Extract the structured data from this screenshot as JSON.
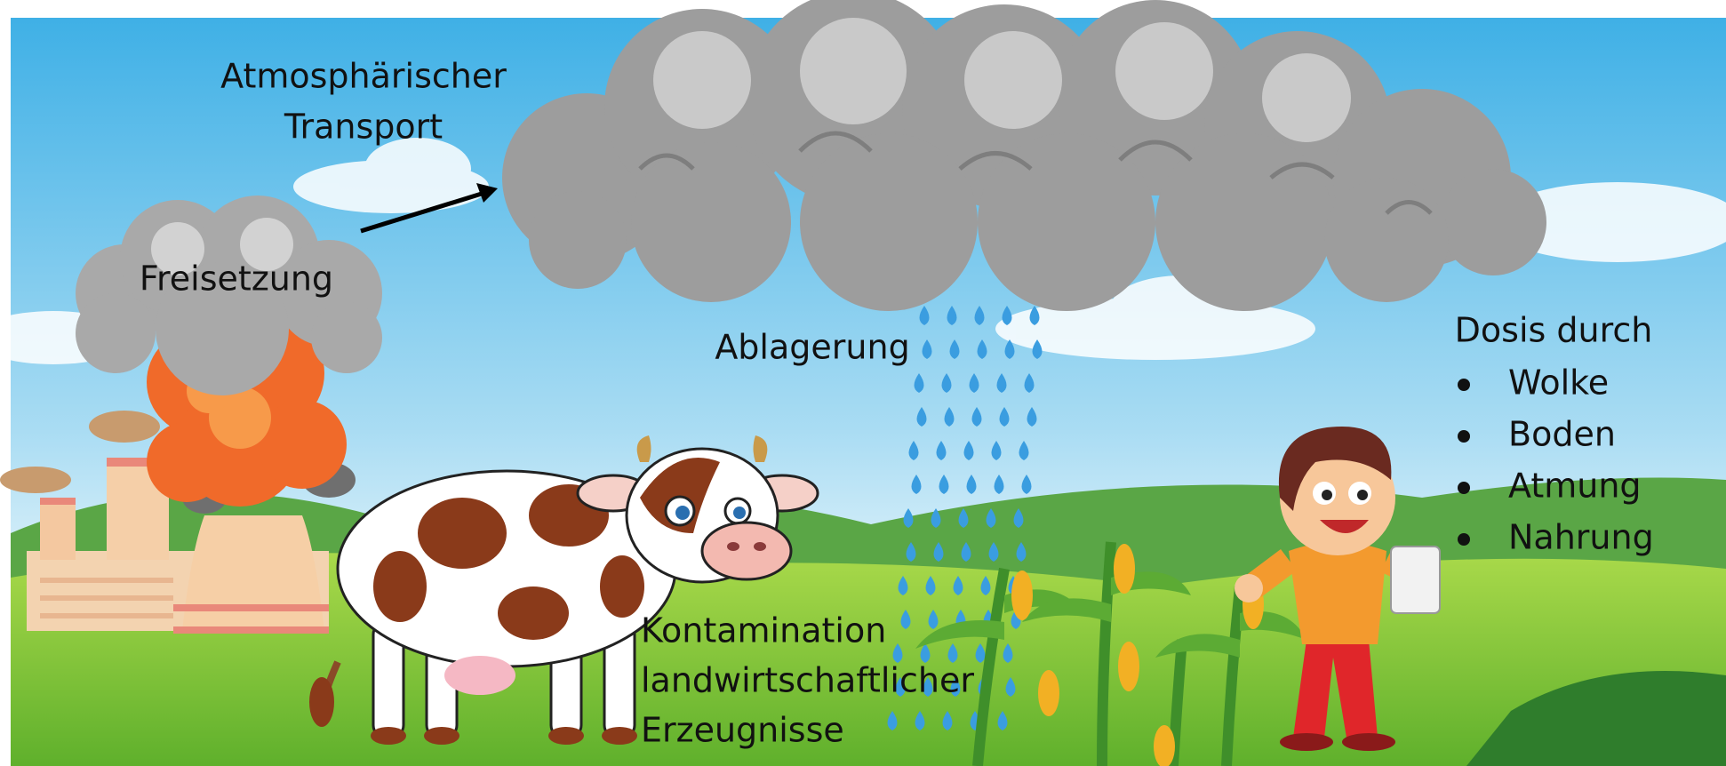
{
  "labels": {
    "release": "Freisetzung",
    "atmospheric_transport": [
      "Atmosphärischer",
      "Transport"
    ],
    "deposition": "Ablagerung",
    "contamination": [
      "Kontamination",
      "landwirtschaftlicher",
      "Erzeugnisse"
    ],
    "dose": {
      "title": "Dosis durch",
      "items": [
        "Wolke",
        "Boden",
        "Atmung",
        "Nahrung"
      ]
    }
  }
}
